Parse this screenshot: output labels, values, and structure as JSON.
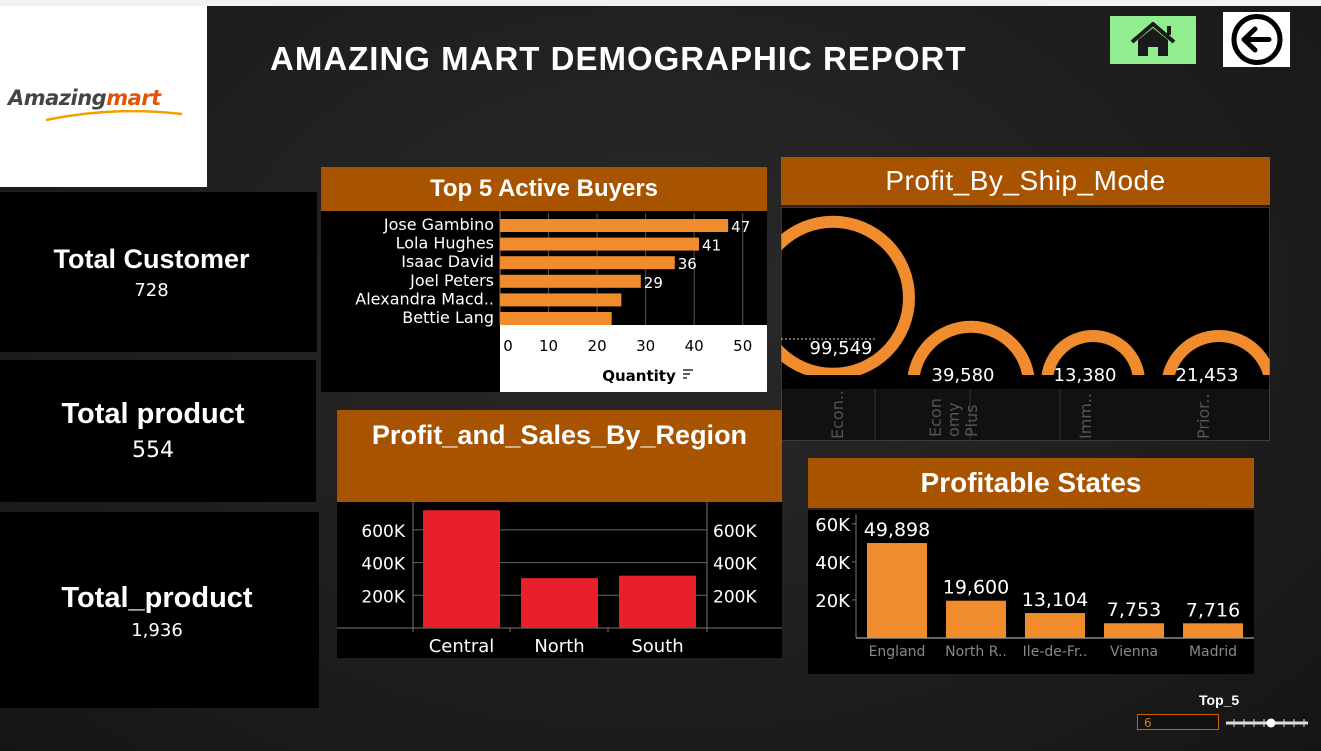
{
  "header": {
    "title": "AMAZING MART DEMOGRAPHIC REPORT",
    "logo_text_a": "Amazing",
    "logo_text_b": "mart",
    "home_icon": "home-icon",
    "back_icon": "back-arrow-icon"
  },
  "kpis": [
    {
      "label": "Total Customer",
      "value": "728"
    },
    {
      "label": "Total product",
      "value": "554"
    },
    {
      "label": "Total_product",
      "value": "1,936"
    }
  ],
  "colors": {
    "accent": "#a85300",
    "bar_orange": "#f08c2e",
    "bar_red": "#e8202a",
    "home_green": "#90ee90"
  },
  "slider": {
    "label": "Top_5",
    "value": "6"
  },
  "chart_data": [
    {
      "type": "bar",
      "orientation": "horizontal",
      "title": "Top 5 Active Buyers",
      "categories": [
        "Jose Gambino",
        "Lola Hughes",
        "Isaac David",
        "Joel Peters",
        "Alexandra Macd..",
        "Bettie Lang"
      ],
      "values": [
        47,
        41,
        36,
        29,
        25,
        23
      ],
      "value_labels": [
        "47",
        "41",
        "36",
        "29",
        "",
        ""
      ],
      "xlabel": "Quantity",
      "xticks": [
        "0",
        "10",
        "20",
        "30",
        "40",
        "50"
      ],
      "xlim": [
        0,
        55
      ]
    },
    {
      "type": "area",
      "title": "Profit_By_Ship_Mode",
      "categories": [
        "Econ..",
        "Econ omy Plus",
        "Imm..",
        "Prior.."
      ],
      "values": [
        99549,
        39580,
        13380,
        21453
      ],
      "value_labels": [
        "99,549",
        "39,580",
        "13,380",
        "21,453"
      ]
    },
    {
      "type": "bar",
      "title": "Profit_and_Sales_By_Region",
      "categories": [
        "Central",
        "North",
        "South"
      ],
      "values": [
        720000,
        305000,
        320000
      ],
      "yticks": [
        "600K",
        "400K",
        "200K"
      ],
      "ylim": [
        0,
        740000
      ]
    },
    {
      "type": "bar",
      "title": "Profitable States",
      "categories": [
        "England",
        "North R..",
        "Ile-de-Fr..",
        "Vienna",
        "Madrid"
      ],
      "values": [
        49898,
        19600,
        13104,
        7753,
        7716
      ],
      "value_labels": [
        "49,898",
        "19,600",
        "13,104",
        "7,753",
        "7,716"
      ],
      "yticks": [
        "60K",
        "40K",
        "20K"
      ],
      "ylim": [
        0,
        62000
      ]
    }
  ]
}
